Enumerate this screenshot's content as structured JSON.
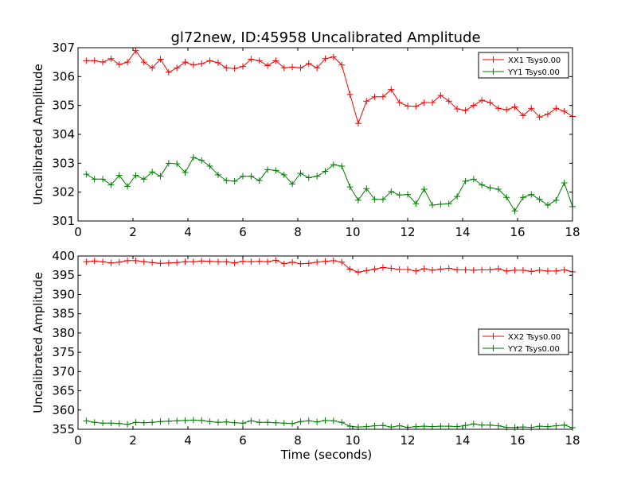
{
  "chart_data": [
    {
      "type": "line",
      "title": "gl72new, ID:45958 Uncalibrated Amplitude",
      "xlabel": "",
      "ylabel": "Uncalibrated Amplitude",
      "xlim": [
        0,
        18
      ],
      "ylim": [
        301,
        307
      ],
      "xticks": [
        "0",
        "2",
        "4",
        "6",
        "8",
        "10",
        "12",
        "14",
        "16",
        "18"
      ],
      "yticks": [
        "301",
        "302",
        "303",
        "304",
        "305",
        "306",
        "307"
      ],
      "legend_position": "top-right",
      "x": [
        0.3,
        0.6,
        0.9,
        1.2,
        1.5,
        1.8,
        2.1,
        2.4,
        2.7,
        3.0,
        3.3,
        3.6,
        3.9,
        4.2,
        4.5,
        4.8,
        5.1,
        5.4,
        5.7,
        6.0,
        6.3,
        6.6,
        6.9,
        7.2,
        7.5,
        7.8,
        8.1,
        8.4,
        8.7,
        9.0,
        9.3,
        9.6,
        9.9,
        10.2,
        10.5,
        10.8,
        11.1,
        11.4,
        11.7,
        12.0,
        12.3,
        12.6,
        12.9,
        13.2,
        13.5,
        13.8,
        14.1,
        14.4,
        14.7,
        15.0,
        15.3,
        15.6,
        15.9,
        16.2,
        16.5,
        16.8,
        17.1,
        17.4,
        17.7,
        18.0
      ],
      "series": [
        {
          "name": "XX1 Tsys0.00",
          "color": "#ff0000",
          "values": [
            306.55,
            306.55,
            306.5,
            306.62,
            306.42,
            306.5,
            306.9,
            306.5,
            306.3,
            306.6,
            306.15,
            306.3,
            306.5,
            306.4,
            306.45,
            306.55,
            306.48,
            306.3,
            306.28,
            306.35,
            306.6,
            306.55,
            306.38,
            306.55,
            306.3,
            306.33,
            306.3,
            306.45,
            306.3,
            306.62,
            306.68,
            306.4,
            305.38,
            304.38,
            305.15,
            305.3,
            305.3,
            305.55,
            305.1,
            304.98,
            304.97,
            305.1,
            305.1,
            305.35,
            305.15,
            304.88,
            304.83,
            305.0,
            305.18,
            305.1,
            304.9,
            304.85,
            304.95,
            304.65,
            304.9,
            304.6,
            304.7,
            304.9,
            304.8,
            304.62
          ]
        },
        {
          "name": "YY1 Tsys0.00",
          "color": "#008000",
          "values": [
            302.62,
            302.45,
            302.45,
            302.25,
            302.58,
            302.2,
            302.58,
            302.45,
            302.7,
            302.55,
            303.0,
            302.98,
            302.68,
            303.2,
            303.1,
            302.9,
            302.6,
            302.4,
            302.38,
            302.55,
            302.55,
            302.4,
            302.78,
            302.75,
            302.6,
            302.28,
            302.65,
            302.5,
            302.55,
            302.72,
            302.95,
            302.9,
            302.18,
            301.72,
            302.12,
            301.75,
            301.75,
            302.02,
            301.9,
            301.92,
            301.6,
            302.1,
            301.55,
            301.58,
            301.6,
            301.85,
            302.38,
            302.45,
            302.25,
            302.15,
            302.1,
            301.82,
            301.35,
            301.82,
            301.92,
            301.75,
            301.55,
            301.72,
            302.32,
            301.5
          ]
        }
      ]
    },
    {
      "type": "line",
      "title": "",
      "xlabel": "Time (seconds)",
      "ylabel": "Uncalibrated Amplitude",
      "xlim": [
        0,
        18
      ],
      "ylim": [
        355,
        400
      ],
      "xticks": [
        "0",
        "2",
        "4",
        "6",
        "8",
        "10",
        "12",
        "14",
        "16",
        "18"
      ],
      "yticks": [
        "355",
        "360",
        "365",
        "370",
        "375",
        "380",
        "385",
        "390",
        "395",
        "400"
      ],
      "legend_position": "center-right",
      "x": [
        0.3,
        0.6,
        0.9,
        1.2,
        1.5,
        1.8,
        2.1,
        2.4,
        2.7,
        3.0,
        3.3,
        3.6,
        3.9,
        4.2,
        4.5,
        4.8,
        5.1,
        5.4,
        5.7,
        6.0,
        6.3,
        6.6,
        6.9,
        7.2,
        7.5,
        7.8,
        8.1,
        8.4,
        8.7,
        9.0,
        9.3,
        9.6,
        9.9,
        10.2,
        10.5,
        10.8,
        11.1,
        11.4,
        11.7,
        12.0,
        12.3,
        12.6,
        12.9,
        13.2,
        13.5,
        13.8,
        14.1,
        14.4,
        14.7,
        15.0,
        15.3,
        15.6,
        15.9,
        16.2,
        16.5,
        16.8,
        17.1,
        17.4,
        17.7,
        18.0
      ],
      "series": [
        {
          "name": "XX2 Tsys0.00",
          "color": "#ff0000",
          "values": [
            398.5,
            398.7,
            398.5,
            398.2,
            398.4,
            398.8,
            398.8,
            398.5,
            398.3,
            398.1,
            398.2,
            398.3,
            398.5,
            398.5,
            398.7,
            398.6,
            398.5,
            398.5,
            398.2,
            398.6,
            398.5,
            398.6,
            398.5,
            398.9,
            398.0,
            398.4,
            398.0,
            398.1,
            398.4,
            398.6,
            398.8,
            398.4,
            396.6,
            395.8,
            396.2,
            396.6,
            397.0,
            396.8,
            396.5,
            396.5,
            396.1,
            396.7,
            396.3,
            396.6,
            396.8,
            396.4,
            396.4,
            396.3,
            396.4,
            396.4,
            396.7,
            396.1,
            396.3,
            396.3,
            396.0,
            396.3,
            396.1,
            396.1,
            396.4,
            395.9
          ]
        },
        {
          "name": "YY2 Tsys0.00",
          "color": "#008000",
          "values": [
            357.2,
            356.8,
            356.6,
            356.6,
            356.5,
            356.3,
            356.8,
            356.7,
            356.8,
            357.0,
            357.1,
            357.2,
            357.3,
            357.4,
            357.3,
            357.0,
            356.8,
            356.9,
            356.7,
            356.6,
            357.2,
            356.8,
            356.8,
            356.7,
            356.6,
            356.5,
            357.0,
            357.2,
            356.9,
            357.3,
            357.2,
            356.8,
            355.8,
            355.6,
            355.7,
            355.9,
            356.0,
            355.6,
            355.9,
            355.5,
            355.7,
            355.8,
            355.7,
            355.8,
            355.8,
            355.7,
            356.0,
            356.4,
            356.1,
            356.1,
            355.9,
            355.5,
            355.5,
            355.6,
            355.5,
            355.8,
            355.7,
            355.9,
            356.1,
            355.4
          ]
        }
      ]
    }
  ]
}
